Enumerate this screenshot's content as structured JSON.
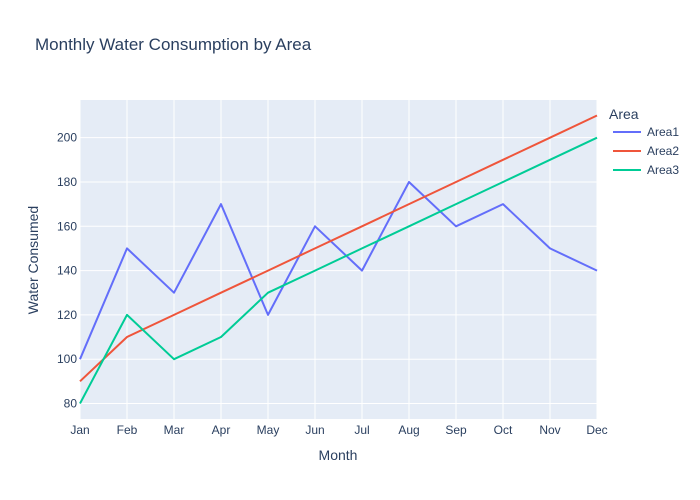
{
  "chart_data": {
    "type": "line",
    "title": "Monthly Water Consumption by Area",
    "xlabel": "Month",
    "ylabel": "Water Consumed",
    "categories": [
      "Jan",
      "Feb",
      "Mar",
      "Apr",
      "May",
      "Jun",
      "Jul",
      "Aug",
      "Sep",
      "Oct",
      "Nov",
      "Dec"
    ],
    "yticks": [
      80,
      100,
      120,
      140,
      160,
      180,
      200
    ],
    "ylim": [
      73,
      217
    ],
    "grid": true,
    "legend": {
      "title": "Area",
      "placement": "right"
    },
    "series": [
      {
        "name": "Area1",
        "color": "#636efa",
        "values": [
          100,
          150,
          130,
          170,
          120,
          160,
          140,
          180,
          160,
          170,
          150,
          140
        ]
      },
      {
        "name": "Area2",
        "color": "#EF553B",
        "values": [
          90,
          110,
          120,
          130,
          140,
          150,
          160,
          170,
          180,
          190,
          200,
          210
        ]
      },
      {
        "name": "Area3",
        "color": "#00cc96",
        "values": [
          80,
          120,
          100,
          110,
          130,
          140,
          150,
          160,
          170,
          180,
          190,
          200
        ]
      }
    ]
  }
}
